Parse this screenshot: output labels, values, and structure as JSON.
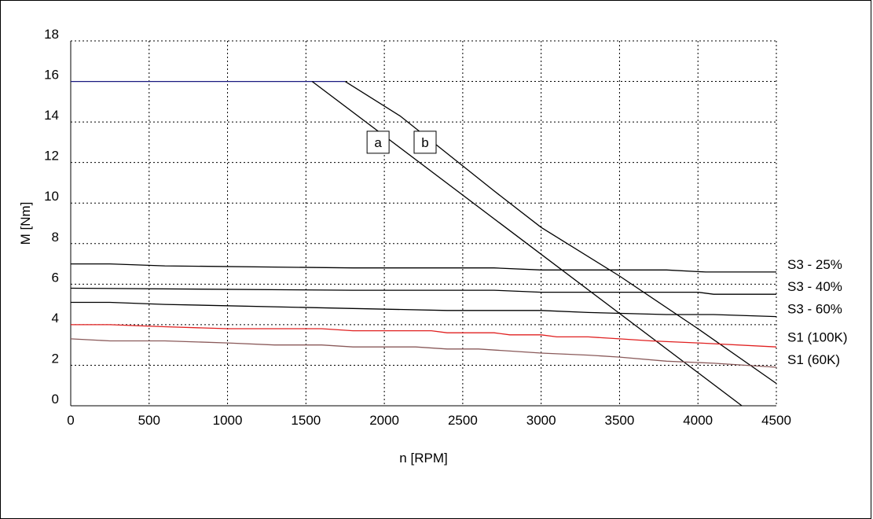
{
  "chart_data": {
    "type": "line",
    "xlabel": "n [RPM]",
    "ylabel": "M [Nm]",
    "xlim": [
      0,
      4500
    ],
    "ylim": [
      0,
      18
    ],
    "x_ticks": [
      0,
      500,
      1000,
      1500,
      2000,
      2500,
      3000,
      3500,
      4000,
      4500
    ],
    "y_ticks": [
      0,
      2,
      4,
      6,
      8,
      10,
      12,
      14,
      16,
      18
    ],
    "grid": true,
    "colors": {
      "max_torque": "#1a1a80",
      "s1_100k": "#e02020",
      "s1_60k": "#8a5a5a",
      "default": "#000000"
    },
    "series": [
      {
        "key": "max_torque",
        "x": [
          0,
          1750
        ],
        "y": [
          16,
          16
        ]
      },
      {
        "key": "a",
        "name": "a",
        "x": [
          1540,
          4280
        ],
        "y": [
          16,
          0
        ]
      },
      {
        "key": "b",
        "name": "b",
        "x": [
          1750,
          2100,
          2700,
          3000,
          3500,
          4000,
          4500
        ],
        "y": [
          16,
          14.3,
          10.6,
          8.8,
          6.4,
          3.8,
          1.1
        ]
      },
      {
        "key": "s3_25",
        "name": "S3 - 25%",
        "x": [
          0,
          250,
          600,
          1800,
          2700,
          3000,
          3800,
          4050,
          4500
        ],
        "y": [
          7.0,
          7.0,
          6.9,
          6.8,
          6.8,
          6.7,
          6.7,
          6.6,
          6.6
        ]
      },
      {
        "key": "s3_40",
        "name": "S3 - 40%",
        "x": [
          0,
          1800,
          2700,
          3000,
          4000,
          4100,
          4500
        ],
        "y": [
          5.8,
          5.7,
          5.7,
          5.6,
          5.6,
          5.5,
          5.5
        ]
      },
      {
        "key": "s3_60",
        "name": "S3 - 60%",
        "x": [
          0,
          250,
          600,
          1800,
          2400,
          3000,
          3300,
          3800,
          4100,
          4500
        ],
        "y": [
          5.1,
          5.1,
          5.0,
          4.8,
          4.7,
          4.7,
          4.6,
          4.5,
          4.5,
          4.4
        ]
      },
      {
        "key": "s1_100k",
        "name": "S1 (100K)",
        "x": [
          0,
          250,
          600,
          1000,
          1600,
          1800,
          2300,
          2400,
          2700,
          2800,
          3000,
          3100,
          3300,
          3500,
          3700,
          4000,
          4500
        ],
        "y": [
          4.0,
          4.0,
          3.9,
          3.8,
          3.8,
          3.7,
          3.7,
          3.6,
          3.6,
          3.5,
          3.5,
          3.4,
          3.4,
          3.3,
          3.2,
          3.1,
          2.9
        ]
      },
      {
        "key": "s1_60k",
        "name": "S1 (60K)",
        "x": [
          0,
          250,
          600,
          1000,
          1300,
          1600,
          1800,
          2200,
          2400,
          2600,
          2800,
          3000,
          3300,
          3500,
          3800,
          4100,
          4500
        ],
        "y": [
          3.3,
          3.2,
          3.2,
          3.1,
          3.0,
          3.0,
          2.9,
          2.9,
          2.8,
          2.8,
          2.7,
          2.6,
          2.5,
          2.4,
          2.2,
          2.1,
          1.9
        ]
      }
    ],
    "box_labels": [
      {
        "text": "a",
        "x": 1960,
        "y": 13.0
      },
      {
        "text": "b",
        "x": 2260,
        "y": 13.0
      }
    ],
    "series_labels": [
      {
        "text": "S3 - 25%",
        "y": 6.6
      },
      {
        "text": "S3 - 40%",
        "y": 5.5
      },
      {
        "text": "S3 - 60%",
        "y": 4.4
      },
      {
        "text": "S1 (100K)",
        "y": 3.0
      },
      {
        "text": "S1 (60K)",
        "y": 1.9
      }
    ]
  }
}
